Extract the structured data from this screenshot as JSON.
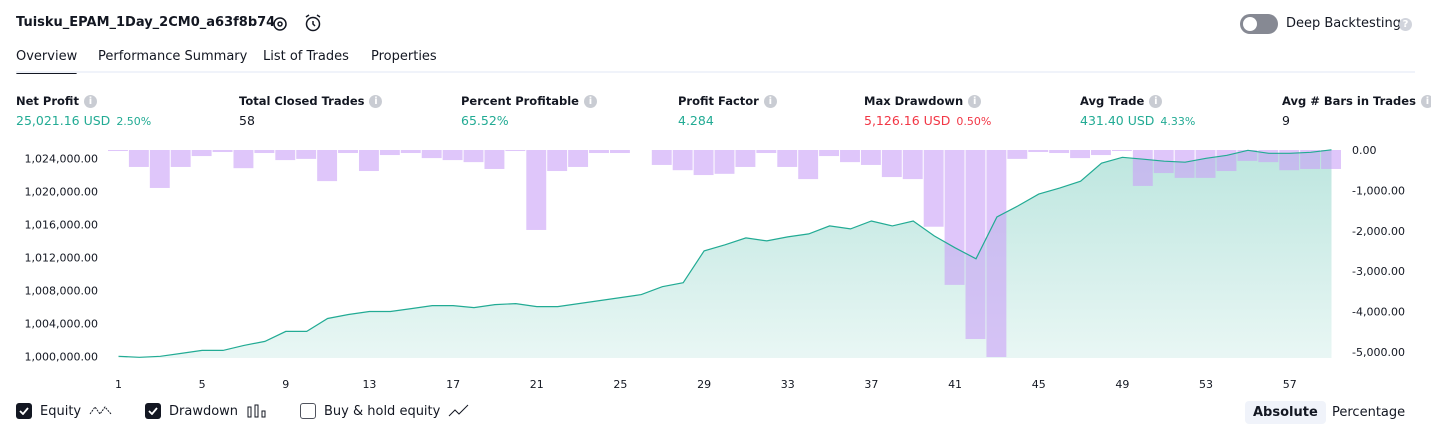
{
  "header": {
    "title": "Tuisku_EPAM_1Day_2CM0_a63f8b74",
    "toggle": "Deep Backtesting"
  },
  "tabs": [
    "Overview",
    "Performance Summary",
    "List of Trades",
    "Properties"
  ],
  "metrics": [
    {
      "label": "Net Profit",
      "value": "25,021.16 USD",
      "extra": "2.50%",
      "color": "#22ab94"
    },
    {
      "label": "Total Closed Trades",
      "value": "58",
      "color": "#131722"
    },
    {
      "label": "Percent Profitable",
      "value": "65.52%",
      "color": "#22ab94"
    },
    {
      "label": "Profit Factor",
      "value": "4.284",
      "color": "#22ab94"
    },
    {
      "label": "Max Drawdown",
      "value": "5,126.16 USD",
      "extra": "0.50%",
      "color": "#f23645"
    },
    {
      "label": "Avg Trade",
      "value": "431.40 USD",
      "extra": "4.33%",
      "color": "#22ab94"
    },
    {
      "label": "Avg # Bars in Trades",
      "value": "9",
      "color": "#131722"
    }
  ],
  "chart_data": {
    "type": "line",
    "x": [
      1,
      2,
      3,
      4,
      5,
      6,
      7,
      8,
      9,
      10,
      11,
      12,
      13,
      14,
      15,
      16,
      17,
      18,
      19,
      20,
      21,
      22,
      23,
      24,
      25,
      26,
      27,
      28,
      29,
      30,
      31,
      32,
      33,
      34,
      35,
      36,
      37,
      38,
      39,
      40,
      41,
      42,
      43,
      44,
      45,
      46,
      47,
      48,
      49,
      50,
      51,
      52,
      53,
      54,
      55,
      56,
      57,
      58,
      59
    ],
    "xlim": [
      0.5,
      59.5
    ],
    "xticks": [
      1,
      5,
      9,
      13,
      17,
      21,
      25,
      29,
      33,
      37,
      41,
      45,
      49,
      53,
      57
    ],
    "ylim": [
      999800,
      1025000
    ],
    "yticks": [
      {
        "value": 1000000,
        "label": "1,000,000.00"
      },
      {
        "value": 1004000,
        "label": "1,004,000.00"
      },
      {
        "value": 1008000,
        "label": "1,008,000.00"
      },
      {
        "value": 1012000,
        "label": "1,012,000.00"
      },
      {
        "value": 1016000,
        "label": "1,016,000.00"
      },
      {
        "value": 1020000,
        "label": "1,020,000.00"
      },
      {
        "value": 1024000,
        "label": "1,024,000.00"
      }
    ],
    "y2lim": [
      -5150,
      0
    ],
    "y2ticks": [
      {
        "value": 0,
        "label": "0.00"
      },
      {
        "value": -1000,
        "label": "-1,000.00"
      },
      {
        "value": -2000,
        "label": "-2,000.00"
      },
      {
        "value": -3000,
        "label": "-3,000.00"
      },
      {
        "value": -4000,
        "label": "-4,000.00"
      },
      {
        "value": -5000,
        "label": "-5,000.00"
      }
    ],
    "series": [
      {
        "name": "Equity",
        "color": "#22ab94",
        "values": [
          1000000,
          999880,
          1000000,
          1000360,
          1000720,
          1000720,
          1001330,
          1001810,
          1003020,
          1003020,
          1004580,
          1005070,
          1005430,
          1005430,
          1005790,
          1006150,
          1006150,
          1005910,
          1006270,
          1006390,
          1006030,
          1006030,
          1006390,
          1006750,
          1007120,
          1007480,
          1008440,
          1008920,
          1012780,
          1013510,
          1014350,
          1013990,
          1014470,
          1014830,
          1015800,
          1015440,
          1016400,
          1015800,
          1016400,
          1014590,
          1013150,
          1011820,
          1016880,
          1018210,
          1019660,
          1020380,
          1021220,
          1023400,
          1024120,
          1023880,
          1023640,
          1023520,
          1024000,
          1024360,
          1024960,
          1024600,
          1024600,
          1024720,
          1025021
        ]
      },
      {
        "name": "Drawdown",
        "color": "#c9a0f7",
        "axis": "y2",
        "values": [
          -25,
          -420,
          -940,
          -420,
          -150,
          -50,
          -450,
          -75,
          -250,
          -220,
          -770,
          -75,
          -520,
          -125,
          -75,
          -200,
          -250,
          -300,
          -470,
          -25,
          -1980,
          -520,
          -420,
          -75,
          -75,
          0,
          -370,
          -500,
          -620,
          -590,
          -420,
          -75,
          -420,
          -720,
          -150,
          -300,
          -370,
          -670,
          -720,
          -1900,
          -3340,
          -4680,
          -5126,
          -220,
          -50,
          -75,
          -200,
          -125,
          -25,
          -890,
          -570,
          -690,
          -690,
          -520,
          -270,
          -300,
          -500,
          -470,
          -470
        ]
      }
    ],
    "legend_extra": "Buy & hold equity"
  },
  "buttons": [
    "Absolute",
    "Percentage"
  ]
}
